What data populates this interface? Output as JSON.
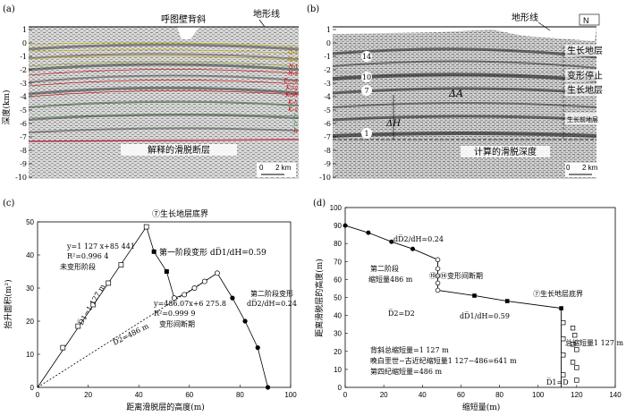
{
  "panel_a": {
    "label": "(a)",
    "title": "呼图壁背斜",
    "topo_label": "地形线",
    "ylabel": "深度(km)",
    "ticks": [
      "1",
      "0",
      "-1",
      "-2",
      "-3",
      "-4",
      "-5",
      "-6",
      "-7",
      "-8",
      "-9",
      "-10"
    ],
    "fault_label": "解释的滑脱断层",
    "scale": "2 km",
    "scale_zero": "0",
    "formations": [
      "Q₁x",
      "N₂d",
      "N₁t",
      "N₁s",
      "E₁₋₂z",
      "K₁tg",
      "K₁sh",
      "K₁h",
      "K₁q",
      "J₃",
      "J₂",
      "J₁"
    ]
  },
  "panel_b": {
    "label": "(b)",
    "topo_label": "地形线",
    "north": "N",
    "ticks": [
      "1",
      "0",
      "-1",
      "-2",
      "-3",
      "-4",
      "-5",
      "-6",
      "-7",
      "-8",
      "-9",
      "-10"
    ],
    "layer_nums": [
      "14",
      "10",
      "7",
      "1"
    ],
    "delta_a": "ΔA",
    "delta_h": "ΔH",
    "right_labels": [
      "生长地层",
      "变形停止",
      "生长地层",
      "生长前地层"
    ],
    "depth_label": "计算的滑脱深度",
    "scale": "2 km",
    "scale_zero": "0"
  },
  "panel_c": {
    "label": "(c)",
    "xlabel": "距离滑脱层的高度(m)",
    "ylabel": "抬升面积(m²)",
    "xticks": [
      "0",
      "20",
      "40",
      "60",
      "80",
      "100"
    ],
    "yticks": [
      "0",
      "10",
      "20",
      "30",
      "40",
      "50"
    ],
    "top_label": "⑦生长地层底界",
    "eq1": "y=1 127 x+85 441",
    "r1": "R²=0.996 4",
    "undeformed": "未变形阶段",
    "d1": "D̅1=1 127 m",
    "d2": "D̅2=486 m",
    "stage1": "第一阶段变形 dD̅1/dH=0.59",
    "eq2": "y=486.07x+6 275.8",
    "r2": "R²=0.999 9",
    "interval": "变形间断期",
    "stage2a": "第二阶段变形",
    "stage2b": "dD̅2/dH=0.24"
  },
  "panel_d": {
    "label": "(d)",
    "xlabel": "缩短量(m)",
    "ylabel": "距离滑脱层的高度(m)",
    "xticks": [
      "0",
      "20",
      "40",
      "60",
      "80",
      "100",
      "120",
      "140"
    ],
    "yticks": [
      "0",
      "10",
      "20",
      "30",
      "40",
      "50",
      "60",
      "70",
      "80",
      "90",
      "100"
    ],
    "dd2": "dD̅2/dH=0.24",
    "stage2": "第二阶段",
    "short2": "缩短量486 m",
    "interval": "⑩–⑭变形间断期",
    "d2eq": "D̅2=D2",
    "dd1": "dD̅1/dH=0.59",
    "growth": "⑦生长地层底界",
    "total": "总缩短量1 127 m",
    "sum1": "背斜总缩短量=1 127 m",
    "sum2": "晚白垩世−古近纪缩短量1 127−486=641 m",
    "sum3": "第四纪缩短量=486 m",
    "d1eq": "D̅1=D"
  },
  "chart_data": [
    {
      "type": "scatter",
      "xlabel": "距离滑脱层的高度(m)",
      "ylabel": "抬升面积(m²)",
      "xlim": [
        0,
        100
      ],
      "ylim": [
        0,
        50
      ],
      "series": [
        {
          "x": [
            10,
            16,
            22,
            28,
            33,
            43
          ],
          "y": [
            12,
            18.5,
            25,
            31.5,
            37,
            48.5
          ]
        },
        {
          "x": [
            46,
            51,
            54,
            58,
            62,
            66,
            71
          ],
          "y": [
            41,
            35,
            27,
            28,
            30,
            32,
            34.5
          ]
        },
        {
          "x": [
            77,
            82,
            87,
            91
          ],
          "y": [
            27,
            20,
            12,
            0
          ]
        }
      ]
    },
    {
      "type": "line",
      "xlabel": "缩短量(m)",
      "ylabel": "距离滑脱层的高度(m)",
      "xlim": [
        0,
        140
      ],
      "ylim": [
        0,
        100
      ],
      "series": [
        {
          "x": [
            0,
            12,
            24,
            35,
            48,
            48,
            48,
            48,
            48,
            67,
            84,
            112,
            112
          ],
          "y": [
            90,
            86,
            81,
            77,
            71,
            66,
            62,
            58,
            54,
            51,
            48,
            44,
            0
          ]
        },
        {
          "x": [
            113,
            118,
            119,
            113,
            118,
            120,
            113,
            118,
            120,
            113,
            120
          ],
          "y": [
            36,
            33,
            29,
            27,
            24,
            21,
            18,
            14,
            11,
            7,
            4
          ]
        }
      ]
    }
  ]
}
